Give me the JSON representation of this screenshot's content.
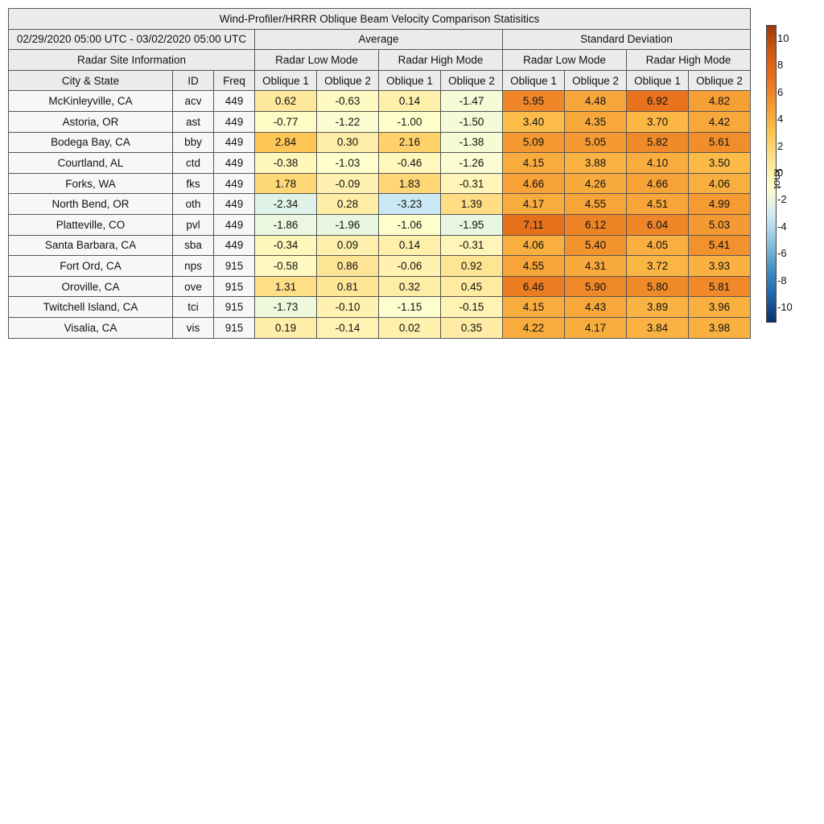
{
  "chart_data": {
    "type": "table",
    "title": "Wind-Profiler/HRRR Oblique Beam Velocity Comparison Statisitics",
    "period": "02/29/2020 05:00 UTC - 03/02/2020 05:00 UTC",
    "group_headers": [
      "Average",
      "Standard Deviation"
    ],
    "site_header": "Radar Site Information",
    "mode_headers": [
      "Radar Low Mode",
      "Radar High Mode",
      "Radar Low Mode",
      "Radar High Mode"
    ],
    "column_headers": [
      "City & State",
      "ID",
      "Freq",
      "Oblique 1",
      "Oblique 2",
      "Oblique 1",
      "Oblique 2",
      "Oblique 1",
      "Oblique 2",
      "Oblique 1",
      "Oblique 2"
    ],
    "colorbar": {
      "label": "knot",
      "range": [
        -11,
        11
      ],
      "ticks": [
        "10",
        "8",
        "6",
        "4",
        "2",
        "0",
        "-2",
        "-4",
        "-6",
        "-8",
        "-10"
      ],
      "colors": [
        "#08306b",
        "#2166ac",
        "#4393c3",
        "#92c5de",
        "#d1ecf6",
        "#ffffcc",
        "#fee391",
        "#fec44f",
        "#f59b32",
        "#e8711c",
        "#d25a0f",
        "#9e3a0b"
      ]
    },
    "rows": [
      {
        "city": "McKinleyville, CA",
        "id": "acv",
        "freq": "449",
        "avg_low_o1": "0.62",
        "avg_low_o2": "-0.63",
        "avg_high_o1": "0.14",
        "avg_high_o2": "-1.47",
        "sd_low_o1": "5.95",
        "sd_low_o2": "4.48",
        "sd_high_o1": "6.92",
        "sd_high_o2": "4.82"
      },
      {
        "city": "Astoria, OR",
        "id": "ast",
        "freq": "449",
        "avg_low_o1": "-0.77",
        "avg_low_o2": "-1.22",
        "avg_high_o1": "-1.00",
        "avg_high_o2": "-1.50",
        "sd_low_o1": "3.40",
        "sd_low_o2": "4.35",
        "sd_high_o1": "3.70",
        "sd_high_o2": "4.42"
      },
      {
        "city": "Bodega Bay, CA",
        "id": "bby",
        "freq": "449",
        "avg_low_o1": "2.84",
        "avg_low_o2": "0.30",
        "avg_high_o1": "2.16",
        "avg_high_o2": "-1.38",
        "sd_low_o1": "5.09",
        "sd_low_o2": "5.05",
        "sd_high_o1": "5.82",
        "sd_high_o2": "5.61"
      },
      {
        "city": "Courtland, AL",
        "id": "ctd",
        "freq": "449",
        "avg_low_o1": "-0.38",
        "avg_low_o2": "-1.03",
        "avg_high_o1": "-0.46",
        "avg_high_o2": "-1.26",
        "sd_low_o1": "4.15",
        "sd_low_o2": "3.88",
        "sd_high_o1": "4.10",
        "sd_high_o2": "3.50"
      },
      {
        "city": "Forks, WA",
        "id": "fks",
        "freq": "449",
        "avg_low_o1": "1.78",
        "avg_low_o2": "-0.09",
        "avg_high_o1": "1.83",
        "avg_high_o2": "-0.31",
        "sd_low_o1": "4.66",
        "sd_low_o2": "4.26",
        "sd_high_o1": "4.66",
        "sd_high_o2": "4.06"
      },
      {
        "city": "North Bend, OR",
        "id": "oth",
        "freq": "449",
        "avg_low_o1": "-2.34",
        "avg_low_o2": "0.28",
        "avg_high_o1": "-3.23",
        "avg_high_o2": "1.39",
        "sd_low_o1": "4.17",
        "sd_low_o2": "4.55",
        "sd_high_o1": "4.51",
        "sd_high_o2": "4.99"
      },
      {
        "city": "Platteville, CO",
        "id": "pvl",
        "freq": "449",
        "avg_low_o1": "-1.86",
        "avg_low_o2": "-1.96",
        "avg_high_o1": "-1.06",
        "avg_high_o2": "-1.95",
        "sd_low_o1": "7.11",
        "sd_low_o2": "6.12",
        "sd_high_o1": "6.04",
        "sd_high_o2": "5.03"
      },
      {
        "city": "Santa Barbara, CA",
        "id": "sba",
        "freq": "449",
        "avg_low_o1": "-0.34",
        "avg_low_o2": "0.09",
        "avg_high_o1": "0.14",
        "avg_high_o2": "-0.31",
        "sd_low_o1": "4.06",
        "sd_low_o2": "5.40",
        "sd_high_o1": "4.05",
        "sd_high_o2": "5.41"
      },
      {
        "city": "Fort Ord, CA",
        "id": "nps",
        "freq": "915",
        "avg_low_o1": "-0.58",
        "avg_low_o2": "0.86",
        "avg_high_o1": "-0.06",
        "avg_high_o2": "0.92",
        "sd_low_o1": "4.55",
        "sd_low_o2": "4.31",
        "sd_high_o1": "3.72",
        "sd_high_o2": "3.93"
      },
      {
        "city": "Oroville, CA",
        "id": "ove",
        "freq": "915",
        "avg_low_o1": "1.31",
        "avg_low_o2": "0.81",
        "avg_high_o1": "0.32",
        "avg_high_o2": "0.45",
        "sd_low_o1": "6.46",
        "sd_low_o2": "5.90",
        "sd_high_o1": "5.80",
        "sd_high_o2": "5.81"
      },
      {
        "city": "Twitchell Island, CA",
        "id": "tci",
        "freq": "915",
        "avg_low_o1": "-1.73",
        "avg_low_o2": "-0.10",
        "avg_high_o1": "-1.15",
        "avg_high_o2": "-0.15",
        "sd_low_o1": "4.15",
        "sd_low_o2": "4.43",
        "sd_high_o1": "3.89",
        "sd_high_o2": "3.96"
      },
      {
        "city": "Visalia, CA",
        "id": "vis",
        "freq": "915",
        "avg_low_o1": "0.19",
        "avg_low_o2": "-0.14",
        "avg_high_o1": "0.02",
        "avg_high_o2": "0.35",
        "sd_low_o1": "4.22",
        "sd_low_o2": "4.17",
        "sd_high_o1": "3.84",
        "sd_high_o2": "3.98"
      }
    ]
  }
}
